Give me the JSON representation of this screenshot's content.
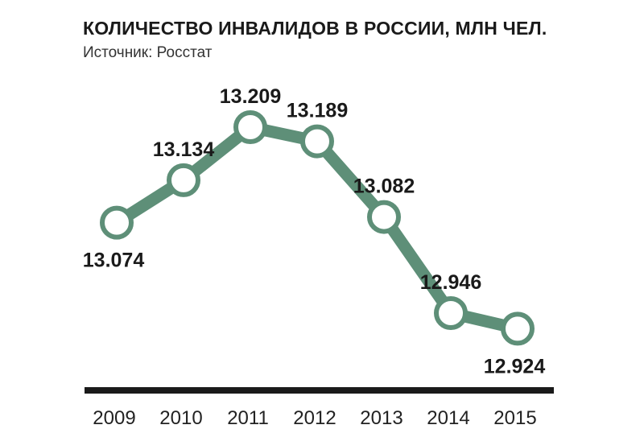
{
  "header": {
    "title": "КОЛИЧЕСТВО ИНВАЛИДОВ В РОССИИ, МЛН ЧЕЛ.",
    "subtitle": "Источник: Росстат"
  },
  "chart_data": {
    "type": "line",
    "title": "КОЛИЧЕСТВО ИНВАЛИДОВ В РОССИИ, МЛН ЧЕЛ.",
    "subtitle": "Источник: Росстат",
    "xlabel": "",
    "ylabel": "",
    "categories": [
      "2009",
      "2010",
      "2011",
      "2012",
      "2013",
      "2014",
      "2015"
    ],
    "series": [
      {
        "values": [
          13.074,
          13.134,
          13.209,
          13.189,
          13.082,
          12.946,
          12.924
        ],
        "labels": [
          "13.074",
          "13.134",
          "13.209",
          "13.189",
          "13.082",
          "12.946",
          "12.924"
        ]
      }
    ],
    "label_positions": [
      "below",
      "above",
      "above",
      "above",
      "above",
      "above",
      "below"
    ],
    "ylim": [
      12.88,
      13.25
    ],
    "grid": false,
    "legend": "none",
    "colors": {
      "line": "#5e8f78",
      "marker_fill": "#ffffff",
      "axis": "#1a1a1a"
    }
  }
}
